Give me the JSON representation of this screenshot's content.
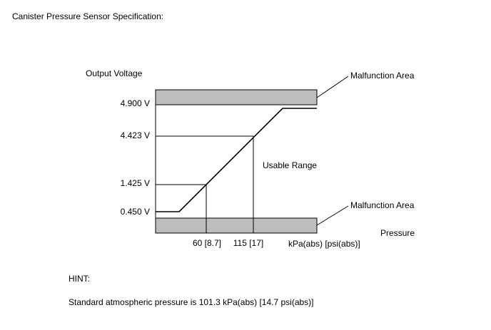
{
  "header": {
    "title": "Canister Pressure Sensor Specification:"
  },
  "diagram": {
    "y_axis_label": "Output Voltage",
    "x_axis_label": "Pressure",
    "x_unit": "kPa(abs) [psi(abs)]",
    "voltage_labels": [
      "4.900 V",
      "4.423 V",
      "1.425 V",
      "0.450 V"
    ],
    "pressure_labels": [
      "60 [8.7]",
      "115 [17]"
    ],
    "region_labels": {
      "upper": "Malfunction Area",
      "lower": "Malfunction Area",
      "usable": "Usable Range"
    }
  },
  "hint": {
    "title": "HINT:",
    "text": "Standard atmospheric pressure is 101.3 kPa(abs) [14.7 psi(abs)]"
  }
}
